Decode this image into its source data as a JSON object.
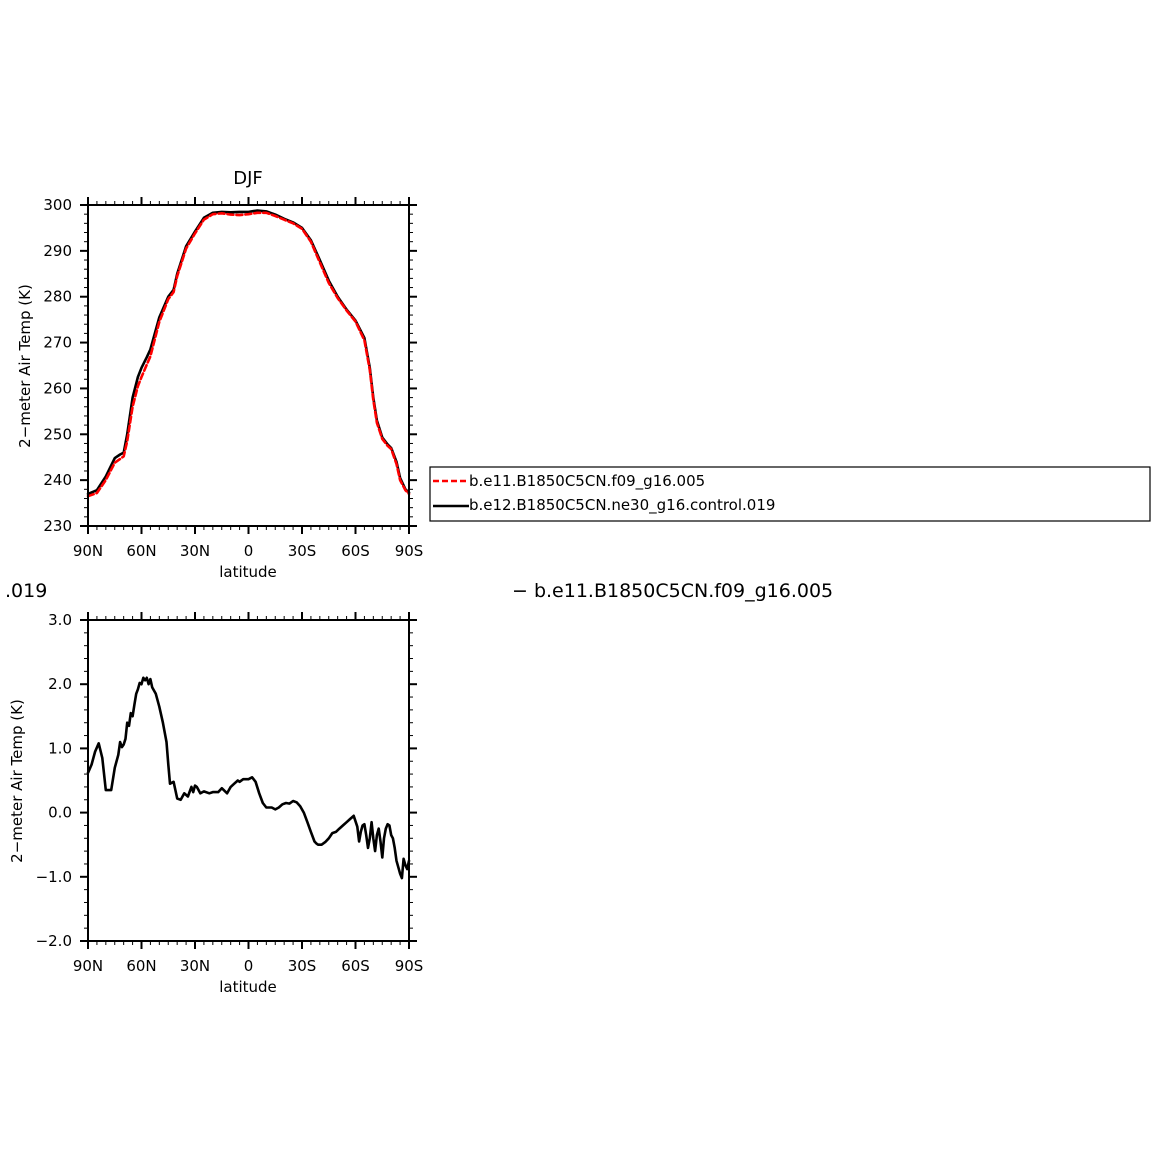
{
  "chart_data": [
    {
      "type": "line",
      "title": "DJF",
      "xlabel": "latitude",
      "ylabel": "2−meter Air Temp (K)",
      "xlim": [
        90,
        -90
      ],
      "ylim": [
        230,
        300
      ],
      "x_tick_values": [
        90,
        60,
        30,
        0,
        -30,
        -60,
        -90
      ],
      "x_tick_labels": [
        "90N",
        "60N",
        "30N",
        "0",
        "30S",
        "60S",
        "90S"
      ],
      "y_tick_values": [
        230,
        240,
        250,
        260,
        270,
        280,
        290,
        300
      ],
      "y_tick_labels": [
        "230",
        "240",
        "250",
        "260",
        "270",
        "280",
        "290",
        "300"
      ],
      "legend": {
        "position": "right",
        "entries": [
          "b.e11.B1850C5CN.f09_g16.005",
          "b.e12.B1850C5CN.ne30_g16.control.019"
        ]
      },
      "series": [
        {
          "name": "b.e11.B1850C5CN.f09_g16.005",
          "color": "#ff0000",
          "dash": "dashed",
          "x": [
            90,
            85,
            80,
            75,
            72,
            70,
            68,
            65,
            62,
            60,
            57,
            55,
            50,
            45,
            42,
            40,
            35,
            30,
            25,
            20,
            15,
            10,
            5,
            0,
            -5,
            -10,
            -15,
            -20,
            -25,
            -30,
            -35,
            -40,
            -45,
            -50,
            -55,
            -60,
            -65,
            -68,
            -70,
            -72,
            -75,
            -78,
            -80,
            -83,
            -85,
            -88,
            -90
          ],
          "y": [
            236.5,
            237.2,
            240.0,
            243.8,
            244.6,
            245.2,
            248.5,
            256.0,
            260.5,
            262.5,
            265.2,
            267.0,
            274.5,
            279.5,
            281.0,
            284.5,
            290.5,
            293.8,
            296.8,
            298.0,
            298.2,
            297.9,
            297.8,
            298.0,
            298.3,
            298.3,
            297.6,
            296.8,
            296.0,
            294.8,
            292.0,
            287.5,
            283.0,
            279.7,
            277.0,
            274.6,
            270.5,
            264.0,
            257.5,
            252.5,
            249.0,
            247.5,
            246.8,
            243.5,
            240.0,
            237.8,
            237.0
          ]
        },
        {
          "name": "b.e12.B1850C5CN.ne30_g16.control.019",
          "color": "#000000",
          "dash": "solid",
          "x": [
            90,
            85,
            80,
            75,
            72,
            70,
            68,
            65,
            62,
            60,
            57,
            55,
            50,
            45,
            42,
            40,
            35,
            30,
            25,
            20,
            15,
            10,
            5,
            0,
            -5,
            -10,
            -15,
            -20,
            -25,
            -30,
            -35,
            -40,
            -45,
            -50,
            -55,
            -60,
            -65,
            -68,
            -70,
            -72,
            -75,
            -78,
            -80,
            -83,
            -85,
            -88,
            -90
          ],
          "y": [
            237.0,
            237.8,
            240.8,
            244.8,
            245.6,
            246.0,
            250.0,
            258.0,
            262.5,
            264.5,
            266.8,
            268.5,
            275.5,
            280.0,
            281.5,
            285.0,
            291.0,
            294.2,
            297.2,
            298.3,
            298.5,
            298.4,
            298.5,
            298.5,
            298.8,
            298.6,
            297.9,
            297.0,
            296.2,
            295.0,
            292.3,
            288.0,
            283.5,
            280.0,
            277.2,
            274.8,
            271.0,
            264.5,
            258.0,
            253.0,
            249.3,
            247.8,
            247.0,
            244.0,
            240.5,
            238.0,
            237.3
          ]
        }
      ]
    },
    {
      "type": "line",
      "title": "",
      "xlabel": "latitude",
      "ylabel": "2−meter Air Temp (K)",
      "xlim": [
        90,
        -90
      ],
      "ylim": [
        -2.0,
        3.0
      ],
      "x_tick_values": [
        90,
        60,
        30,
        0,
        -30,
        -60,
        -90
      ],
      "x_tick_labels": [
        "90N",
        "60N",
        "30N",
        "0",
        "30S",
        "60S",
        "90S"
      ],
      "y_tick_values": [
        -2.0,
        -1.0,
        0.0,
        1.0,
        2.0,
        3.0
      ],
      "y_tick_labels": [
        "−2.0",
        "−1.0",
        "0.0",
        "1.0",
        "2.0",
        "3.0"
      ],
      "series": [
        {
          "color": "#000000",
          "dash": "solid",
          "x": [
            90,
            88,
            86,
            84,
            82,
            80,
            77,
            75,
            73,
            72,
            71,
            70,
            69,
            68,
            67,
            66,
            65,
            64,
            63,
            62,
            61,
            60,
            59,
            58,
            57,
            56,
            55,
            54,
            52,
            50,
            48,
            46,
            45,
            44,
            42,
            41,
            40,
            38,
            36,
            34,
            32,
            31,
            30,
            29,
            28,
            27,
            25,
            22,
            20,
            17,
            15,
            12,
            10,
            8,
            6,
            5,
            3,
            0,
            -2,
            -4,
            -6,
            -8,
            -10,
            -13,
            -15,
            -17,
            -19,
            -21,
            -23,
            -25,
            -27,
            -29,
            -31,
            -33,
            -35,
            -37,
            -38,
            -39,
            -41,
            -43,
            -45,
            -47,
            -49,
            -51,
            -53,
            -55,
            -57,
            -59,
            -61,
            -62,
            -63,
            -64,
            -65,
            -66,
            -67,
            -68,
            -69,
            -70,
            -71,
            -72,
            -73,
            -74,
            -75,
            -76,
            -77,
            -78,
            -79,
            -80,
            -81,
            -82,
            -83,
            -84,
            -85,
            -86,
            -87,
            -88,
            -89,
            -90
          ],
          "y": [
            0.62,
            0.75,
            0.95,
            1.08,
            0.85,
            0.35,
            0.35,
            0.7,
            0.9,
            1.1,
            1.02,
            1.06,
            1.15,
            1.4,
            1.35,
            1.55,
            1.5,
            1.68,
            1.85,
            1.92,
            2.02,
            2.0,
            2.1,
            2.06,
            2.1,
            2.0,
            2.08,
            1.95,
            1.85,
            1.65,
            1.4,
            1.1,
            0.75,
            0.45,
            0.48,
            0.35,
            0.22,
            0.2,
            0.3,
            0.25,
            0.4,
            0.32,
            0.42,
            0.4,
            0.35,
            0.3,
            0.33,
            0.3,
            0.32,
            0.32,
            0.38,
            0.3,
            0.4,
            0.45,
            0.5,
            0.48,
            0.52,
            0.52,
            0.55,
            0.48,
            0.3,
            0.15,
            0.08,
            0.08,
            0.05,
            0.08,
            0.13,
            0.15,
            0.14,
            0.18,
            0.16,
            0.1,
            0.0,
            -0.15,
            -0.3,
            -0.45,
            -0.48,
            -0.5,
            -0.5,
            -0.46,
            -0.4,
            -0.32,
            -0.3,
            -0.25,
            -0.2,
            -0.15,
            -0.1,
            -0.05,
            -0.22,
            -0.45,
            -0.3,
            -0.2,
            -0.18,
            -0.35,
            -0.55,
            -0.4,
            -0.15,
            -0.4,
            -0.6,
            -0.35,
            -0.25,
            -0.45,
            -0.7,
            -0.4,
            -0.25,
            -0.18,
            -0.2,
            -0.35,
            -0.4,
            -0.55,
            -0.75,
            -0.85,
            -0.95,
            -1.02,
            -0.72,
            -0.82,
            -0.88,
            -0.75
          ]
        }
      ]
    }
  ],
  "page_text": {
    "left_fragment": ".019",
    "right_fragment": "−  b.e11.B1850C5CN.f09_g16.005"
  }
}
